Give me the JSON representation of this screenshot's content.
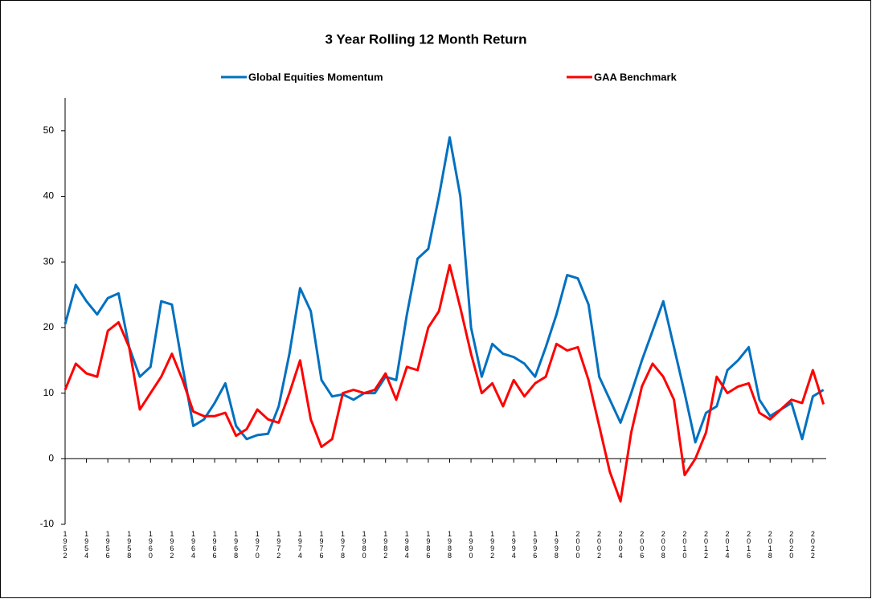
{
  "chart_data": {
    "type": "line",
    "title": "3 Year Rolling 12 Month Return",
    "x": [
      1952,
      1953,
      1954,
      1955,
      1956,
      1957,
      1958,
      1959,
      1960,
      1961,
      1962,
      1963,
      1964,
      1965,
      1966,
      1967,
      1968,
      1969,
      1970,
      1971,
      1972,
      1973,
      1974,
      1975,
      1976,
      1977,
      1978,
      1979,
      1980,
      1981,
      1982,
      1983,
      1984,
      1985,
      1986,
      1987,
      1988,
      1989,
      1990,
      1991,
      1992,
      1993,
      1994,
      1995,
      1996,
      1997,
      1998,
      1999,
      2000,
      2001,
      2002,
      2003,
      2004,
      2005,
      2006,
      2007,
      2008,
      2009,
      2010,
      2011,
      2012,
      2013,
      2014,
      2015,
      2016,
      2017,
      2018,
      2019,
      2020,
      2021,
      2022,
      2023
    ],
    "series": [
      {
        "name": "Global Equities Momentum",
        "color": "#0070c0",
        "values": [
          20.5,
          26.5,
          24,
          22,
          24.5,
          25.2,
          17,
          12.5,
          14,
          24,
          23.5,
          14,
          5,
          6,
          8.5,
          11.5,
          5,
          3,
          3.6,
          3.8,
          8,
          16,
          26,
          22.5,
          12,
          9.5,
          9.8,
          9,
          10,
          10,
          12.5,
          12,
          22,
          30.5,
          32,
          40,
          49,
          40,
          20,
          12.5,
          17.5,
          16,
          15.5,
          14.5,
          12.5,
          17,
          22,
          28,
          27.5,
          23.5,
          12.5,
          9,
          5.5,
          10,
          15,
          19.5,
          24,
          17,
          10,
          2.5,
          7,
          8,
          13.5,
          15,
          17,
          9,
          6.5,
          7.5,
          8.5,
          3,
          9.5,
          10.5
        ]
      },
      {
        "name": "GAA Benchmark",
        "color": "#ff0000",
        "values": [
          10.5,
          14.5,
          13,
          12.5,
          19.5,
          20.8,
          17,
          7.5,
          10,
          12.5,
          16,
          12,
          7.2,
          6.5,
          6.5,
          7,
          3.5,
          4.5,
          7.5,
          6,
          5.5,
          10,
          15,
          6,
          1.8,
          3,
          10,
          10.5,
          10,
          10.5,
          13,
          9,
          14,
          13.5,
          20,
          22.5,
          29.5,
          23,
          16,
          10,
          11.5,
          8,
          12,
          9.5,
          11.5,
          12.5,
          17.5,
          16.5,
          17,
          12,
          5,
          -2,
          -6.5,
          4,
          11,
          14.5,
          12.5,
          9,
          -2.5,
          0,
          4,
          12.5,
          10,
          11,
          11.5,
          7,
          6,
          7.5,
          9,
          8.5,
          13.5,
          8.3
        ]
      }
    ],
    "xlim": [
      1952,
      2023.1
    ],
    "xticks": [
      1952,
      1954,
      1956,
      1958,
      1960,
      1962,
      1964,
      1966,
      1968,
      1970,
      1972,
      1974,
      1976,
      1978,
      1980,
      1982,
      1984,
      1986,
      1988,
      1990,
      1992,
      1994,
      1996,
      1998,
      2000,
      2002,
      2004,
      2006,
      2008,
      2010,
      2012,
      2014,
      2016,
      2018,
      2020,
      2022
    ],
    "ylim": [
      -10,
      55
    ],
    "yticks": [
      -10,
      0,
      10,
      20,
      30,
      40,
      50
    ],
    "grid": false,
    "legend": "top"
  }
}
